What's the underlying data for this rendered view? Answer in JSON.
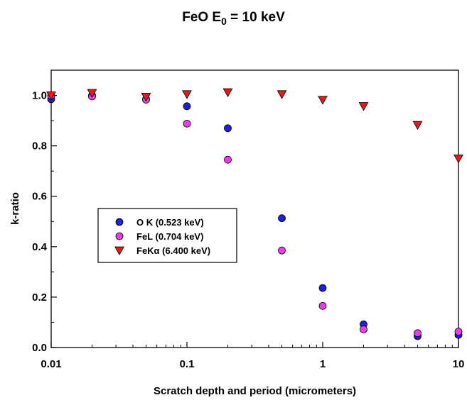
{
  "chart_data": {
    "type": "scatter",
    "title_main": "FeO E",
    "title_sub": "0",
    "title_rest": " = 10 keV",
    "xlabel": "Scratch depth and period (micrometers)",
    "ylabel": "k-ratio",
    "xscale": "log",
    "xlim": [
      0.01,
      10
    ],
    "ylim": [
      0,
      1.1
    ],
    "x_ticks": [
      0.01,
      0.1,
      1,
      10
    ],
    "x_tick_labels": [
      "0.01",
      "0.1",
      "1",
      "10"
    ],
    "y_ticks": [
      0,
      0.2,
      0.4,
      0.6,
      0.8,
      1.0
    ],
    "y_tick_labels": [
      "0.0",
      "0.2",
      "0.4",
      "0.6",
      "0.8",
      "1.0"
    ],
    "grid": false,
    "legend_position": "center-left",
    "series": [
      {
        "name": "O K (0.523 keV)",
        "marker": "circle",
        "color": "#1f1fd6",
        "x": [
          0.01,
          0.02,
          0.05,
          0.1,
          0.2,
          0.5,
          1,
          2,
          5,
          10
        ],
        "y": [
          0.985,
          1.0,
          0.985,
          0.957,
          0.87,
          0.513,
          0.236,
          0.092,
          0.045,
          0.05
        ]
      },
      {
        "name": "FeL (0.704 keV)",
        "marker": "circle",
        "color": "#e83ee8",
        "x": [
          0.01,
          0.02,
          0.05,
          0.1,
          0.2,
          0.5,
          1,
          2,
          5,
          10
        ],
        "y": [
          0.998,
          0.996,
          0.983,
          0.888,
          0.745,
          0.385,
          0.165,
          0.072,
          0.057,
          0.063
        ]
      },
      {
        "name": "FeKα (6.400 keV)",
        "marker": "triangle-down",
        "color": "#e01c1c",
        "x": [
          0.01,
          0.02,
          0.05,
          0.1,
          0.2,
          0.5,
          1,
          2,
          5,
          10
        ],
        "y": [
          1.0,
          1.01,
          0.995,
          1.005,
          1.013,
          1.005,
          0.983,
          0.958,
          0.883,
          0.75
        ]
      }
    ]
  }
}
